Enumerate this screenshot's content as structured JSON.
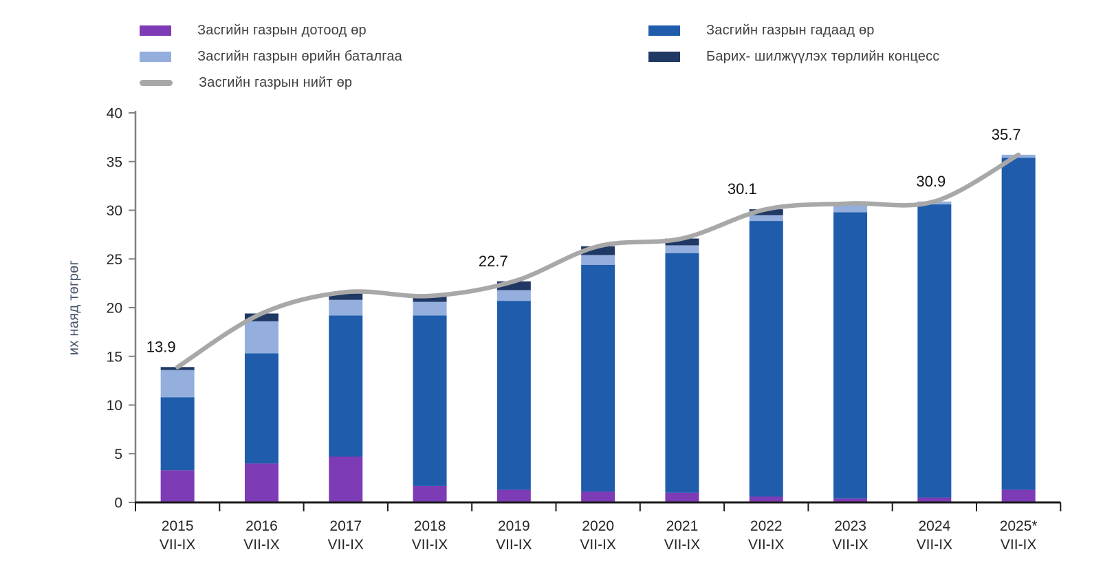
{
  "legend": {
    "left": [
      {
        "label": "Засгийн газрын дотоод өр",
        "color": "#7d3bb5",
        "type": "box"
      },
      {
        "label": "Засгийн газрын өрийн баталгаа",
        "color": "#94afdd",
        "type": "box"
      },
      {
        "label": "Засгийн газрын нийт өр",
        "color": "#a8a8a8",
        "type": "line"
      }
    ],
    "right": [
      {
        "label": "Засгийн газрын гадаад өр",
        "color": "#1f5cab",
        "type": "box"
      },
      {
        "label": "Барих- шилжүүлэх төрлийн концесс",
        "color": "#1f3864",
        "type": "box"
      }
    ]
  },
  "chart_data": {
    "type": "bar",
    "subtype": "stacked-bar-with-line",
    "categories": [
      "2015",
      "2016",
      "2017",
      "2018",
      "2019",
      "2020",
      "2021",
      "2022",
      "2023",
      "2024",
      "2025*"
    ],
    "category_subline": "VII-IX",
    "series": [
      {
        "name": "Засгийн газрын дотоод өр",
        "color": "#7d3bb5",
        "values": [
          3.3,
          4.0,
          4.7,
          1.7,
          1.3,
          1.1,
          1.0,
          0.6,
          0.4,
          0.5,
          1.3
        ]
      },
      {
        "name": "Засгийн газрын гадаад өр",
        "color": "#1f5cab",
        "values": [
          7.5,
          11.3,
          14.5,
          17.5,
          19.4,
          23.3,
          24.6,
          28.3,
          29.4,
          30.1,
          34.1
        ]
      },
      {
        "name": "Засгийн газрын өрийн баталгаа",
        "color": "#94afdd",
        "values": [
          2.8,
          3.3,
          1.6,
          1.4,
          1.1,
          1.0,
          0.8,
          0.6,
          0.9,
          0.3,
          0.3
        ]
      },
      {
        "name": "Барих- шилжүүлэх төрлийн концесс",
        "color": "#1f3864",
        "values": [
          0.3,
          0.8,
          0.8,
          0.6,
          0.9,
          0.9,
          0.7,
          0.6,
          0.0,
          0.0,
          0.0
        ]
      }
    ],
    "line_series": {
      "name": "Засгийн газрын нийт өр",
      "color": "#a8a8a8",
      "values": [
        13.9,
        19.4,
        21.6,
        21.2,
        22.7,
        26.3,
        27.1,
        30.1,
        30.7,
        30.9,
        35.7
      ]
    },
    "point_labels": [
      {
        "index": 0,
        "text": "13.9"
      },
      {
        "index": 4,
        "text": "22.7"
      },
      {
        "index": 7,
        "text": "30.1"
      },
      {
        "index": 9,
        "text": "30.9"
      },
      {
        "index": 10,
        "text": "35.7"
      }
    ],
    "ylabel": "их наяд төгрөг",
    "xlabel": "",
    "title": "",
    "ylim": [
      0,
      40
    ],
    "yticks": [
      0,
      5,
      10,
      15,
      20,
      25,
      30,
      35,
      40
    ],
    "grid": false,
    "legend_position": "top"
  }
}
